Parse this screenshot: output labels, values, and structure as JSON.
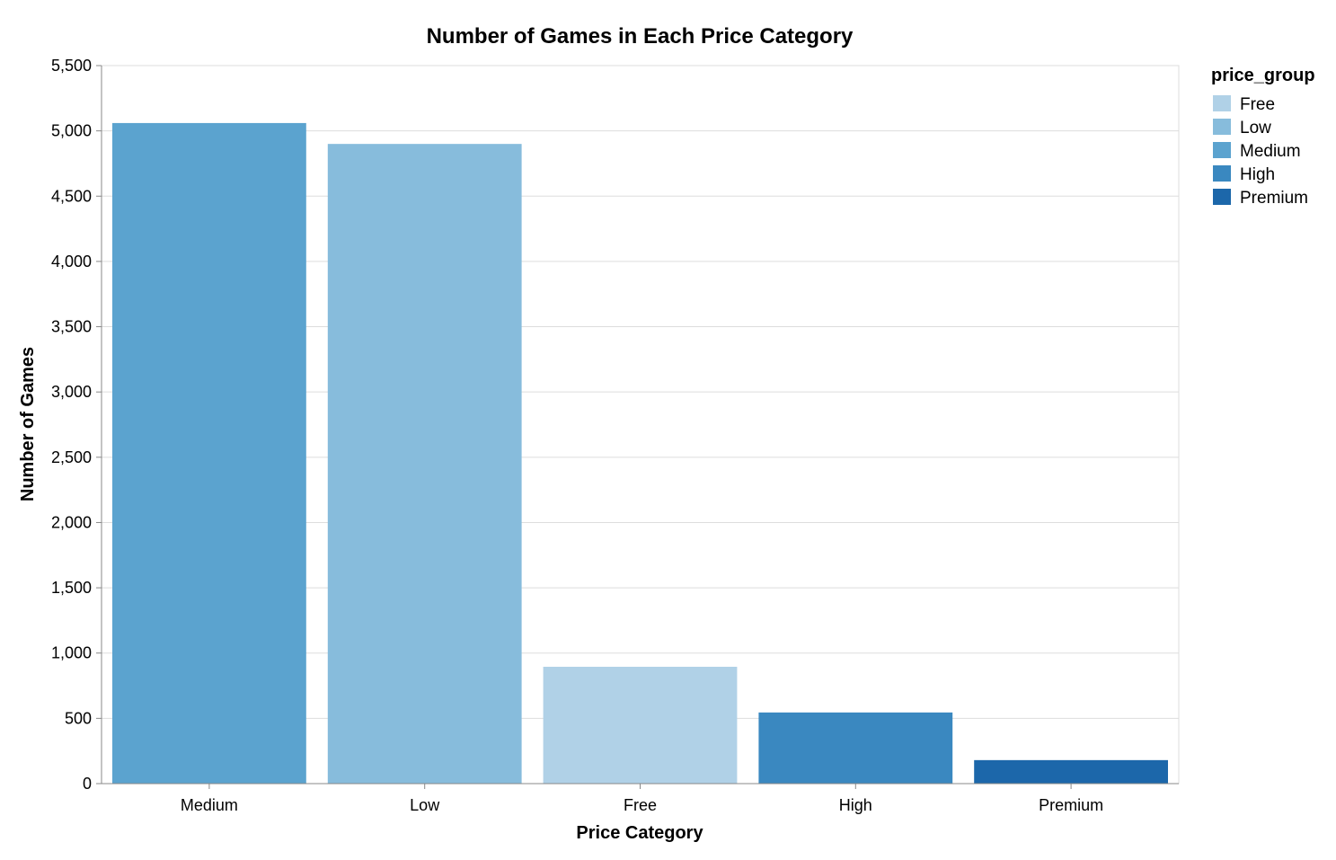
{
  "chart_data": {
    "type": "bar",
    "title": "Number of Games in Each Price Category",
    "xlabel": "Price Category",
    "ylabel": "Number of Games",
    "categories": [
      "Medium",
      "Low",
      "Free",
      "High",
      "Premium"
    ],
    "values": [
      5060,
      4900,
      895,
      545,
      180
    ],
    "bar_colors": [
      "#5ba3cf",
      "#87bcdc",
      "#b0d1e7",
      "#3a88c0",
      "#1c67aa"
    ],
    "ylim": [
      0,
      5500
    ],
    "yticks": [
      0,
      500,
      1000,
      1500,
      2000,
      2500,
      3000,
      3500,
      4000,
      4500,
      5000,
      5500
    ],
    "ytick_labels": [
      "0",
      "500",
      "1,000",
      "1,500",
      "2,000",
      "2,500",
      "3,000",
      "3,500",
      "4,000",
      "4,500",
      "5,000",
      "5,500"
    ],
    "grid": true,
    "legend": {
      "title": "price_group",
      "position": "right",
      "items": [
        {
          "label": "Free",
          "color": "#b0d1e7"
        },
        {
          "label": "Low",
          "color": "#87bcdc"
        },
        {
          "label": "Medium",
          "color": "#5ba3cf"
        },
        {
          "label": "High",
          "color": "#3a88c0"
        },
        {
          "label": "Premium",
          "color": "#1c67aa"
        }
      ]
    }
  }
}
